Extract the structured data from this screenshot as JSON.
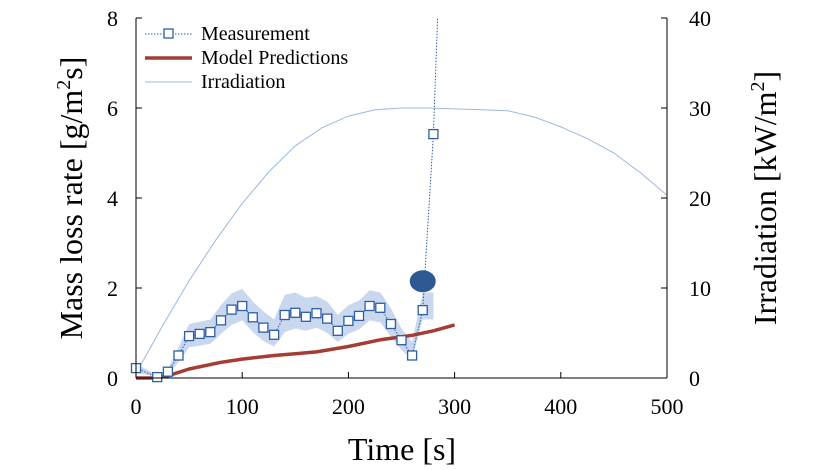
{
  "chart_data": {
    "type": "line",
    "xlabel": "Time [s]",
    "ylabel_left": "Mass loss rate [g/m2s]",
    "ylabel_right": "Irradiation [kW/m2]",
    "xlim": [
      0,
      500
    ],
    "ylim_left": [
      0,
      8
    ],
    "ylim_right": [
      0,
      40
    ],
    "x_ticks": [
      "0",
      "100",
      "200",
      "300",
      "400",
      "500"
    ],
    "y_ticks_left": [
      "0",
      "2",
      "4",
      "6",
      "8"
    ],
    "y_ticks_right": [
      "0",
      "10",
      "20",
      "30",
      "40"
    ],
    "grid": false,
    "legend_position": "top-left",
    "legend": [
      "Measurement",
      "Model Predictions",
      "Irradiation"
    ],
    "colors": {
      "measurement": "#2e5fa3",
      "model": "#a63d35",
      "irradiation": "#9db9de",
      "band": "#c9d8ee",
      "marker": "#2e5a94"
    },
    "series": [
      {
        "name": "Measurement",
        "axis": "left",
        "x": [
          0,
          20,
          30,
          40,
          50,
          60,
          70,
          80,
          90,
          100,
          110,
          120,
          130,
          140,
          150,
          160,
          170,
          180,
          190,
          200,
          210,
          220,
          230,
          240,
          250,
          260,
          270,
          280
        ],
        "y": [
          0.22,
          0.02,
          0.14,
          0.5,
          0.93,
          0.98,
          1.02,
          1.28,
          1.52,
          1.6,
          1.35,
          1.12,
          0.96,
          1.4,
          1.45,
          1.36,
          1.44,
          1.32,
          1.05,
          1.27,
          1.38,
          1.6,
          1.56,
          1.2,
          0.84,
          0.5,
          1.51,
          5.42
        ],
        "band_lower": [
          0.12,
          0.02,
          0.08,
          0.35,
          0.68,
          0.72,
          0.76,
          0.98,
          1.18,
          1.28,
          1.02,
          0.82,
          0.7,
          1.02,
          1.1,
          1.05,
          1.12,
          1.0,
          0.8,
          0.98,
          1.08,
          1.28,
          1.24,
          0.92,
          0.62,
          0.42,
          1.3,
          1.3
        ],
        "band_upper": [
          0.32,
          0.06,
          0.22,
          0.68,
          1.2,
          1.25,
          1.3,
          1.62,
          1.88,
          1.98,
          1.7,
          1.48,
          1.3,
          1.85,
          1.9,
          1.78,
          1.82,
          1.7,
          1.4,
          1.62,
          1.72,
          1.95,
          1.9,
          1.55,
          1.1,
          0.8,
          1.9,
          1.9
        ],
        "continuation": {
          "x": [
            280,
            284
          ],
          "y": [
            5.42,
            8.0
          ]
        }
      },
      {
        "name": "Model Predictions",
        "axis": "left",
        "x": [
          0,
          20,
          30,
          50,
          80,
          100,
          130,
          150,
          170,
          200,
          230,
          260,
          280,
          300
        ],
        "y": [
          0.0,
          0.0,
          0.05,
          0.2,
          0.35,
          0.42,
          0.5,
          0.54,
          0.58,
          0.7,
          0.85,
          0.95,
          1.05,
          1.18
        ]
      },
      {
        "name": "Irradiation",
        "axis": "right",
        "x": [
          0,
          25,
          50,
          75,
          100,
          125,
          150,
          175,
          200,
          225,
          250,
          275,
          300,
          325,
          350,
          375,
          400,
          425,
          450,
          475,
          500
        ],
        "y": [
          0.5,
          5.8,
          10.8,
          15.3,
          19.4,
          22.9,
          25.8,
          27.8,
          29.1,
          29.8,
          30.0,
          30.0,
          29.9,
          29.8,
          29.7,
          29.0,
          27.9,
          26.6,
          25.0,
          22.8,
          20.3
        ]
      }
    ],
    "annotations": [
      {
        "shape": "filled-ellipse",
        "x": 270,
        "y": 2.15
      }
    ]
  }
}
